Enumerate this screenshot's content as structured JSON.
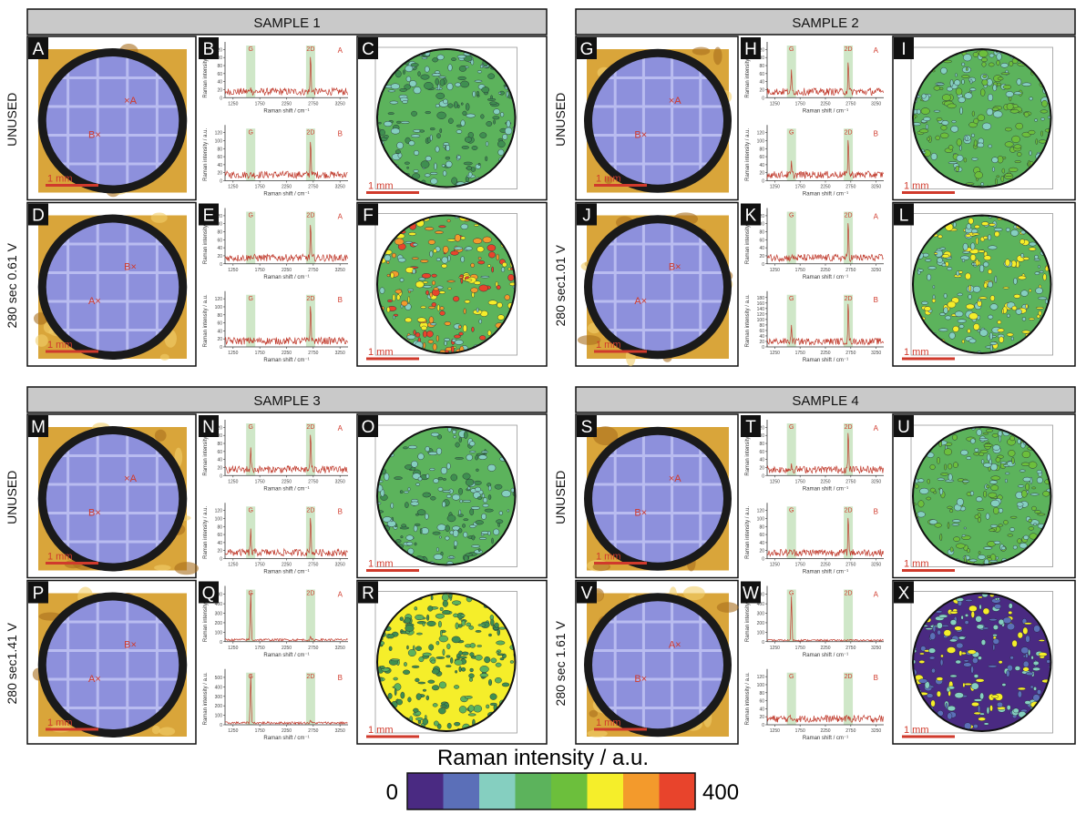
{
  "spectrum": {
    "x_label": "Raman shift / cm⁻¹",
    "y_label": "Raman intensity / a.u.",
    "xlim": [
      1100,
      3400
    ],
    "xticks": [
      1250,
      1750,
      2250,
      2750,
      3250
    ],
    "g_label": "G",
    "d2_label": "2D",
    "g_position": 1580,
    "d2_position": 2700
  },
  "scale_bar": "1 mm",
  "colorbar": {
    "title": "Raman intensity / a.u.",
    "min": 0,
    "max": 400,
    "colors": [
      "#4a2a82",
      "#5b6fb8",
      "#85cfc0",
      "#5cb35c",
      "#6cbf3c",
      "#f5ee2a",
      "#f39a2c",
      "#e8442c"
    ]
  },
  "samples": [
    {
      "title": "SAMPLE 1",
      "rows": [
        {
          "label": "UNUSED",
          "photo": {
            "letter": "A",
            "markers": [
              "×A",
              "B×"
            ]
          },
          "spectra": {
            "letter": "B",
            "plots": [
              {
                "label": "A",
                "ylim": [
                  0,
                  130
                ],
                "yticks": [
                  0,
                  20,
                  40,
                  60,
                  80,
                  100,
                  120
                ],
                "baseline": 15,
                "g": 25,
                "d2": 110
              },
              {
                "label": "B",
                "ylim": [
                  0,
                  130
                ],
                "yticks": [
                  0,
                  20,
                  40,
                  60,
                  80,
                  100,
                  120
                ],
                "baseline": 15,
                "g": 20,
                "d2": 105
              }
            ]
          },
          "map": {
            "letter": "C",
            "colors": [
              "#5cb35c",
              "#85cfc0",
              "#3f8f50"
            ]
          }
        },
        {
          "label": "280 sec 0.61 V",
          "photo": {
            "letter": "D",
            "markers": [
              "B×",
              "A×"
            ]
          },
          "spectra": {
            "letter": "E",
            "plots": [
              {
                "label": "A",
                "ylim": [
                  0,
                  130
                ],
                "yticks": [
                  0,
                  20,
                  40,
                  60,
                  80,
                  100,
                  120
                ],
                "baseline": 15,
                "g": 20,
                "d2": 105
              },
              {
                "label": "B",
                "ylim": [
                  0,
                  130
                ],
                "yticks": [
                  0,
                  20,
                  40,
                  60,
                  80,
                  100,
                  120
                ],
                "baseline": 15,
                "g": 15,
                "d2": 110
              }
            ]
          },
          "map": {
            "letter": "F",
            "colors": [
              "#5cb35c",
              "#85cfc0",
              "#e8442c",
              "#f39a2c",
              "#f5ee2a"
            ]
          }
        }
      ]
    },
    {
      "title": "SAMPLE 2",
      "rows": [
        {
          "label": "UNUSED",
          "photo": {
            "letter": "G",
            "markers": [
              "×A",
              "B×"
            ]
          },
          "spectra": {
            "letter": "H",
            "plots": [
              {
                "label": "A",
                "ylim": [
                  0,
                  130
                ],
                "yticks": [
                  0,
                  20,
                  40,
                  60,
                  80,
                  100,
                  120
                ],
                "baseline": 15,
                "g": 70,
                "d2": 95
              },
              {
                "label": "B",
                "ylim": [
                  0,
                  130
                ],
                "yticks": [
                  0,
                  20,
                  40,
                  60,
                  80,
                  100,
                  120
                ],
                "baseline": 15,
                "g": 50,
                "d2": 110
              }
            ]
          },
          "map": {
            "letter": "I",
            "colors": [
              "#5cb35c",
              "#6cbf3c",
              "#85cfc0"
            ]
          }
        },
        {
          "label": "280 sec1.01 V",
          "photo": {
            "letter": "J",
            "markers": [
              "B×",
              "A×"
            ]
          },
          "spectra": {
            "letter": "K",
            "plots": [
              {
                "label": "A",
                "ylim": [
                  0,
                  130
                ],
                "yticks": [
                  0,
                  20,
                  40,
                  60,
                  80,
                  100,
                  120
                ],
                "baseline": 15,
                "g": 15,
                "d2": 110
              },
              {
                "label": "B",
                "ylim": [
                  0,
                  190
                ],
                "yticks": [
                  0,
                  20,
                  40,
                  60,
                  80,
                  100,
                  120,
                  140,
                  160,
                  180
                ],
                "baseline": 20,
                "g": 80,
                "d2": 170
              }
            ]
          },
          "map": {
            "letter": "L",
            "colors": [
              "#5cb35c",
              "#85cfc0",
              "#f5ee2a"
            ]
          }
        }
      ]
    },
    {
      "title": "SAMPLE 3",
      "rows": [
        {
          "label": "UNUSED",
          "photo": {
            "letter": "M",
            "markers": [
              "×A",
              "B×"
            ]
          },
          "spectra": {
            "letter": "N",
            "plots": [
              {
                "label": "A",
                "ylim": [
                  0,
                  130
                ],
                "yticks": [
                  0,
                  20,
                  40,
                  60,
                  80,
                  100,
                  120
                ],
                "baseline": 15,
                "g": 70,
                "d2": 110
              },
              {
                "label": "B",
                "ylim": [
                  0,
                  130
                ],
                "yticks": [
                  0,
                  20,
                  40,
                  60,
                  80,
                  100,
                  120
                ],
                "baseline": 15,
                "g": 75,
                "d2": 110
              }
            ]
          },
          "map": {
            "letter": "O",
            "colors": [
              "#5cb35c",
              "#85cfc0",
              "#3f8f50"
            ]
          }
        },
        {
          "label": "280 sec1.41 V",
          "photo": {
            "letter": "P",
            "markers": [
              "B×",
              "A×"
            ]
          },
          "spectra": {
            "letter": "Q",
            "plots": [
              {
                "label": "A",
                "ylim": [
                  0,
                  550
                ],
                "yticks": [
                  0,
                  100,
                  200,
                  300,
                  400,
                  500
                ],
                "baseline": 20,
                "g": 520,
                "d2": 60
              },
              {
                "label": "B",
                "ylim": [
                  0,
                  550
                ],
                "yticks": [
                  0,
                  100,
                  200,
                  300,
                  400,
                  500
                ],
                "baseline": 20,
                "g": 530,
                "d2": 50
              }
            ]
          },
          "map": {
            "letter": "R",
            "colors": [
              "#f5ee2a",
              "#5cb35c",
              "#3f8f50"
            ]
          }
        }
      ]
    },
    {
      "title": "SAMPLE 4",
      "rows": [
        {
          "label": "UNUSED",
          "photo": {
            "letter": "S",
            "markers": [
              "×A",
              "B×"
            ]
          },
          "spectra": {
            "letter": "T",
            "plots": [
              {
                "label": "A",
                "ylim": [
                  0,
                  130
                ],
                "yticks": [
                  0,
                  20,
                  40,
                  60,
                  80,
                  100,
                  120
                ],
                "baseline": 15,
                "g": 30,
                "d2": 115
              },
              {
                "label": "B",
                "ylim": [
                  0,
                  130
                ],
                "yticks": [
                  0,
                  20,
                  40,
                  60,
                  80,
                  100,
                  120
                ],
                "baseline": 15,
                "g": 20,
                "d2": 110
              }
            ]
          },
          "map": {
            "letter": "U",
            "colors": [
              "#5cb35c",
              "#6cbf3c",
              "#85cfc0"
            ]
          }
        },
        {
          "label": "280 sec 1.61 V",
          "photo": {
            "letter": "V",
            "markers": [
              "A×",
              "B×"
            ]
          },
          "spectra": {
            "letter": "W",
            "plots": [
              {
                "label": "A",
                "ylim": [
                  0,
                  550
                ],
                "yticks": [
                  0,
                  100,
                  200,
                  300,
                  400,
                  500
                ],
                "baseline": 15,
                "g": 480,
                "d2": 20
              },
              {
                "label": "B",
                "ylim": [
                  0,
                  130
                ],
                "yticks": [
                  0,
                  20,
                  40,
                  60,
                  80,
                  100,
                  120
                ],
                "baseline": 15,
                "g": 15,
                "d2": 15
              }
            ]
          },
          "map": {
            "letter": "X",
            "colors": [
              "#4a2a82",
              "#5b6fb8",
              "#85cfc0",
              "#f5ee2a"
            ]
          }
        }
      ]
    }
  ]
}
